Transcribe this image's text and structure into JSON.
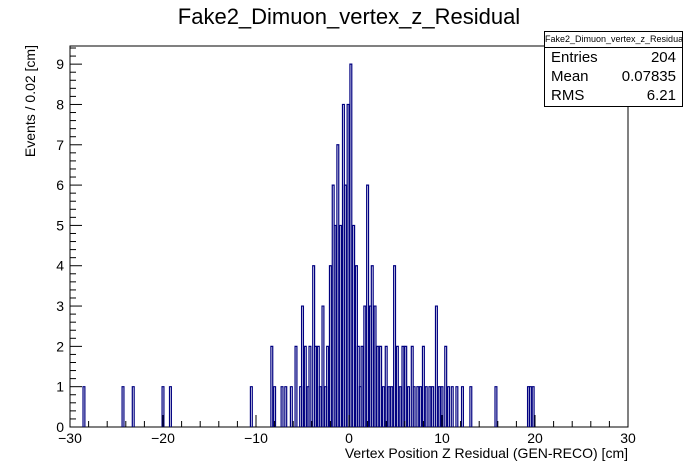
{
  "chart_data": {
    "type": "histogram",
    "title": "Fake2_Dimuon_vertex_z_Residual",
    "xlabel": "Vertex Position Z Residual (GEN-RECO) [cm]",
    "ylabel": "Events / 0.02 [cm]",
    "xlim": [
      -30,
      30
    ],
    "ylim": [
      0,
      9.45
    ],
    "xticks": [
      -30,
      -20,
      -10,
      0,
      10,
      20,
      30
    ],
    "yticks": [
      0,
      1,
      2,
      3,
      4,
      5,
      6,
      7,
      8,
      9
    ],
    "line_color": "#000080",
    "bins": [
      [
        -28.5,
        1
      ],
      [
        -24.3,
        1
      ],
      [
        -23.2,
        1
      ],
      [
        -20.0,
        1
      ],
      [
        -19.2,
        1
      ],
      [
        -10.5,
        1
      ],
      [
        -8.3,
        2
      ],
      [
        -8.0,
        1
      ],
      [
        -7.2,
        1
      ],
      [
        -6.8,
        1
      ],
      [
        -6.2,
        1
      ],
      [
        -5.7,
        2
      ],
      [
        -5.2,
        1
      ],
      [
        -5.0,
        3
      ],
      [
        -4.7,
        2
      ],
      [
        -4.4,
        1
      ],
      [
        -4.2,
        2
      ],
      [
        -3.8,
        4
      ],
      [
        -3.6,
        2
      ],
      [
        -3.3,
        2
      ],
      [
        -3.1,
        1
      ],
      [
        -2.8,
        3
      ],
      [
        -2.5,
        1
      ],
      [
        -2.3,
        2
      ],
      [
        -2.0,
        4
      ],
      [
        -1.7,
        6
      ],
      [
        -1.5,
        5
      ],
      [
        -1.2,
        7
      ],
      [
        -0.9,
        5
      ],
      [
        -0.6,
        8
      ],
      [
        -0.4,
        6
      ],
      [
        -0.1,
        8
      ],
      [
        0.2,
        9
      ],
      [
        0.5,
        5
      ],
      [
        0.8,
        4
      ],
      [
        1.0,
        2
      ],
      [
        1.2,
        1
      ],
      [
        1.4,
        2
      ],
      [
        1.7,
        3
      ],
      [
        2.0,
        6
      ],
      [
        2.3,
        3
      ],
      [
        2.5,
        4
      ],
      [
        2.8,
        3
      ],
      [
        3.1,
        2
      ],
      [
        3.4,
        2
      ],
      [
        3.7,
        1
      ],
      [
        4.0,
        2
      ],
      [
        4.3,
        1
      ],
      [
        4.6,
        1
      ],
      [
        4.9,
        4
      ],
      [
        5.2,
        2
      ],
      [
        5.5,
        1
      ],
      [
        5.8,
        2
      ],
      [
        6.1,
        2
      ],
      [
        6.4,
        1
      ],
      [
        6.8,
        2
      ],
      [
        7.0,
        1
      ],
      [
        7.4,
        1
      ],
      [
        7.7,
        1
      ],
      [
        8.0,
        2
      ],
      [
        8.3,
        1
      ],
      [
        8.7,
        1
      ],
      [
        9.0,
        1
      ],
      [
        9.4,
        3
      ],
      [
        9.7,
        1
      ],
      [
        10.0,
        1
      ],
      [
        10.4,
        2
      ],
      [
        10.7,
        1
      ],
      [
        11.1,
        1
      ],
      [
        11.6,
        1
      ],
      [
        12.2,
        1
      ],
      [
        13.1,
        1
      ],
      [
        15.8,
        1
      ],
      [
        19.3,
        1
      ],
      [
        19.5,
        1
      ],
      [
        19.8,
        1
      ]
    ]
  },
  "stats": {
    "name": "Fake2_Dimuon_vertex_z_Residual",
    "entries_label": "Entries",
    "entries_value": "204",
    "mean_label": "Mean",
    "mean_value": "0.07835",
    "rms_label": "RMS",
    "rms_value": "6.21"
  }
}
